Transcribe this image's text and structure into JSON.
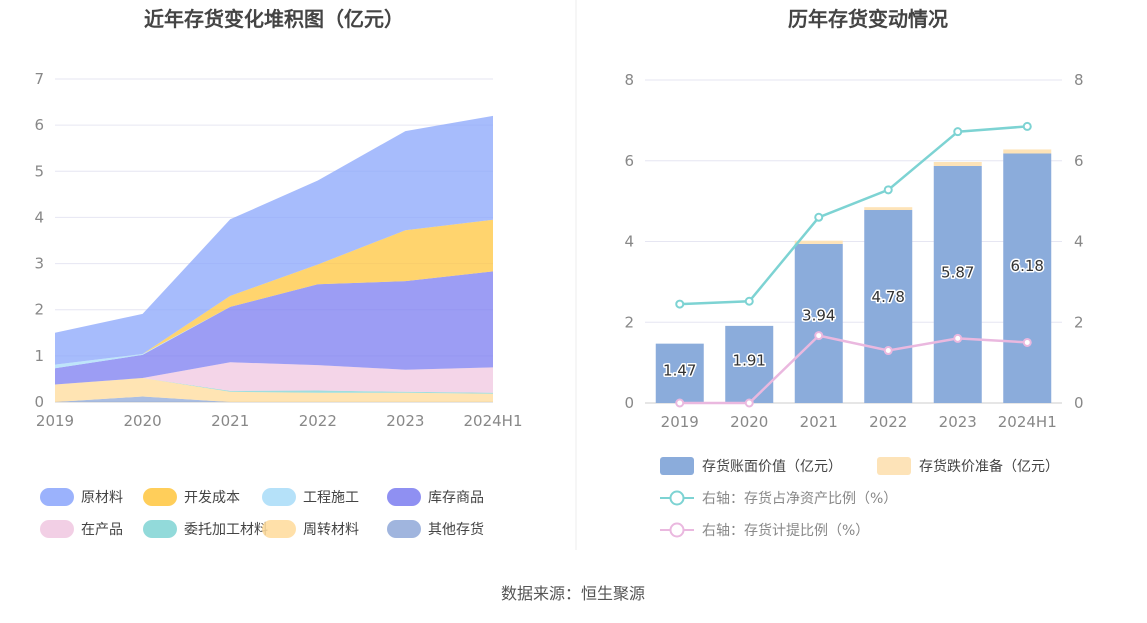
{
  "source": "数据来源：恒生聚源",
  "chart_data": [
    {
      "type": "area",
      "stacked": true,
      "title": "近年存货变化堆积图（亿元）",
      "categories": [
        "2019",
        "2020",
        "2021",
        "2022",
        "2023",
        "2024H1"
      ],
      "ylim": [
        0,
        7
      ],
      "yticks": [
        0,
        1,
        2,
        3,
        4,
        5,
        6,
        7
      ],
      "grid": true,
      "legend_position": "bottom",
      "series": [
        {
          "name": "其他存货",
          "color": "#8fa8d8",
          "values": [
            0,
            0.12,
            0,
            0,
            0,
            0
          ]
        },
        {
          "name": "周转材料",
          "color": "#ffdb9a",
          "values": [
            0.38,
            0.4,
            0.22,
            0.2,
            0.2,
            0.18
          ]
        },
        {
          "name": "委托加工材料",
          "color": "#7fd3d3",
          "values": [
            0,
            0,
            0.02,
            0.05,
            0.02,
            0.02
          ]
        },
        {
          "name": "在产品",
          "color": "#f0c7e0",
          "values": [
            0,
            0,
            0.62,
            0.55,
            0.48,
            0.55
          ]
        },
        {
          "name": "库存商品",
          "color": "#7b7cf0",
          "values": [
            0.35,
            0.5,
            1.2,
            1.75,
            1.92,
            2.08
          ]
        },
        {
          "name": "工程施工",
          "color": "#a8dcf8",
          "values": [
            0.08,
            0.02,
            0,
            0,
            0,
            0
          ]
        },
        {
          "name": "开发成本",
          "color": "#ffc53d",
          "values": [
            0,
            0,
            0.24,
            0.43,
            1.1,
            1.12
          ]
        },
        {
          "name": "原材料",
          "color": "#8aa5fb",
          "values": [
            0.69,
            0.87,
            1.66,
            1.82,
            2.15,
            2.25
          ]
        }
      ],
      "legend_order": [
        "原材料",
        "开发成本",
        "工程施工",
        "库存商品",
        "在产品",
        "委托加工材料",
        "周转材料",
        "其他存货"
      ]
    },
    {
      "type": "bar",
      "stacked": true,
      "title": "历年存货变动情况",
      "categories": [
        "2019",
        "2020",
        "2021",
        "2022",
        "2023",
        "2024H1"
      ],
      "ylim": [
        0,
        8
      ],
      "yticks": [
        0,
        2,
        4,
        6,
        8
      ],
      "y2lim": [
        0,
        8
      ],
      "y2ticks": [
        0,
        2,
        4,
        6,
        8
      ],
      "grid": true,
      "legend_position": "bottom",
      "series": [
        {
          "name": "存货账面价值（亿元）",
          "color": "#8bacdb",
          "values": [
            1.47,
            1.91,
            3.94,
            4.78,
            5.87,
            6.18
          ],
          "labels": [
            "1.47",
            "1.91",
            "3.94",
            "4.78",
            "5.87",
            "6.18"
          ]
        },
        {
          "name": "存货跌价准备（亿元）",
          "color": "#fde3b8",
          "values": [
            0,
            0,
            0.08,
            0.07,
            0.1,
            0.1
          ]
        }
      ],
      "line_series": [
        {
          "name": "右轴：存货占净资产比例（%）",
          "color": "#7dd3d3",
          "axis": "right",
          "values": [
            2.45,
            2.52,
            4.6,
            5.28,
            6.72,
            6.85
          ]
        },
        {
          "name": "右轴：存货计提比例（%）",
          "color": "#eab8df",
          "axis": "right",
          "values": [
            0,
            0,
            1.67,
            1.3,
            1.6,
            1.5
          ]
        }
      ]
    }
  ]
}
